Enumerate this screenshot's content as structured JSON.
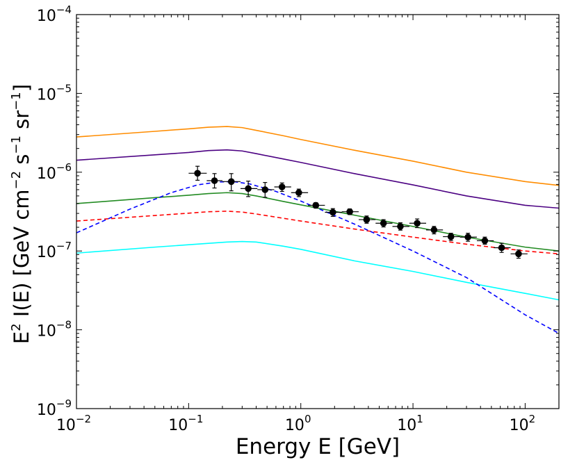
{
  "chart_data": {
    "type": "scatter",
    "title": "",
    "xlabel": "Energy E [GeV]",
    "ylabel": {
      "E": "E",
      "two": "2",
      "text": " I(E) [GeV cm",
      "m2": "−2",
      "s": " s",
      "m1a": "−1",
      "sr": " sr",
      "m1b": "−1",
      "close": "]"
    },
    "x_scale": "log",
    "y_scale": "log",
    "xlim": [
      0.01,
      200
    ],
    "ylim": [
      1e-09,
      0.0001
    ],
    "x_ticks": [
      {
        "value": 0.01,
        "base": "10",
        "exp": "−2"
      },
      {
        "value": 0.1,
        "base": "10",
        "exp": "−1"
      },
      {
        "value": 1,
        "base": "10",
        "exp": "0"
      },
      {
        "value": 10,
        "base": "10",
        "exp": "1"
      },
      {
        "value": 100,
        "base": "10",
        "exp": "2"
      }
    ],
    "y_ticks": [
      {
        "value": 1e-09,
        "base": "10",
        "exp": "−9"
      },
      {
        "value": 1e-08,
        "base": "10",
        "exp": "−8"
      },
      {
        "value": 1e-07,
        "base": "10",
        "exp": "−7"
      },
      {
        "value": 1e-06,
        "base": "10",
        "exp": "−6"
      },
      {
        "value": 1e-05,
        "base": "10",
        "exp": "−5"
      },
      {
        "value": 0.0001,
        "base": "10",
        "exp": "−4"
      }
    ],
    "series": [
      {
        "style": "solid",
        "color": "#ff8c00",
        "x": [
          0.01,
          0.05,
          0.1,
          0.15,
          0.22,
          0.3,
          0.4,
          0.7,
          1,
          3,
          10,
          30,
          100,
          200
        ],
        "y": [
          2.8e-06,
          3.3e-06,
          3.55e-06,
          3.72e-06,
          3.8e-06,
          3.68e-06,
          3.4e-06,
          2.9e-06,
          2.6e-06,
          1.9e-06,
          1.38e-06,
          1e-06,
          7.6e-07,
          6.8e-07
        ]
      },
      {
        "style": "solid",
        "color": "#4b0082",
        "x": [
          0.01,
          0.05,
          0.1,
          0.15,
          0.22,
          0.3,
          0.4,
          0.7,
          1,
          3,
          10,
          30,
          100,
          200
        ],
        "y": [
          1.42e-06,
          1.66e-06,
          1.78e-06,
          1.88e-06,
          1.92e-06,
          1.86e-06,
          1.72e-06,
          1.47e-06,
          1.33e-06,
          9.6e-07,
          6.9e-07,
          5e-07,
          3.8e-07,
          3.5e-07
        ]
      },
      {
        "style": "solid",
        "color": "#228b22",
        "x": [
          0.01,
          0.05,
          0.1,
          0.15,
          0.22,
          0.3,
          0.4,
          0.7,
          1,
          3,
          10,
          30,
          100,
          200
        ],
        "y": [
          4e-07,
          4.75e-07,
          5.1e-07,
          5.35e-07,
          5.5e-07,
          5.35e-07,
          5e-07,
          4.25e-07,
          3.85e-07,
          2.85e-07,
          2.05e-07,
          1.5e-07,
          1.12e-07,
          1e-07
        ]
      },
      {
        "style": "dashed",
        "color": "#ff0000",
        "x": [
          0.01,
          0.05,
          0.1,
          0.15,
          0.22,
          0.3,
          0.4,
          0.7,
          1,
          3,
          10,
          30,
          100,
          200
        ],
        "y": [
          2.4e-07,
          2.82e-07,
          3.02e-07,
          3.15e-07,
          3.2e-07,
          3.12e-07,
          2.95e-07,
          2.6e-07,
          2.4e-07,
          1.9e-07,
          1.5e-07,
          1.22e-07,
          1e-07,
          9.2e-08
        ]
      },
      {
        "style": "solid",
        "color": "#00ffff",
        "x": [
          0.01,
          0.05,
          0.1,
          0.15,
          0.22,
          0.3,
          0.4,
          0.7,
          1,
          3,
          10,
          30,
          100,
          200
        ],
        "y": [
          9.4e-08,
          1.12e-07,
          1.2e-07,
          1.25e-07,
          1.3e-07,
          1.32e-07,
          1.3e-07,
          1.15e-07,
          1.05e-07,
          7.5e-08,
          5.5e-08,
          4e-08,
          2.9e-08,
          2.4e-08
        ]
      },
      {
        "style": "dashed",
        "color": "#0000ff",
        "x": [
          0.01,
          0.03,
          0.07,
          0.12,
          0.18,
          0.25,
          0.35,
          0.6,
          1,
          3,
          10,
          30,
          100,
          200
        ],
        "y": [
          1.7e-07,
          3.4e-07,
          5.5e-07,
          6.9e-07,
          7.5e-07,
          7.6e-07,
          7.1e-07,
          5.7e-07,
          4.3e-07,
          2.2e-07,
          1e-07,
          4.6e-08,
          1.55e-08,
          9e-09
        ]
      },
      {
        "style": "points",
        "color": "#000000",
        "x": [
          0.12,
          0.17,
          0.24,
          0.34,
          0.48,
          0.68,
          0.96,
          1.36,
          1.93,
          2.73,
          3.86,
          5.46,
          7.72,
          10.9,
          15.4,
          21.8,
          30.9,
          43.7,
          61.7,
          87.3
        ],
        "y": [
          9.7e-07,
          7.8e-07,
          7.6e-07,
          6.2e-07,
          6e-07,
          6.5e-07,
          5.5e-07,
          3.8e-07,
          3.1e-07,
          3.15e-07,
          2.5e-07,
          2.25e-07,
          2.05e-07,
          2.25e-07,
          1.85e-07,
          1.52e-07,
          1.5e-07,
          1.35e-07,
          1.1e-07,
          9.2e-08
        ],
        "y_lower": [
          7.9e-07,
          6.3e-07,
          5.8e-07,
          4.9e-07,
          4.8e-07,
          5.7e-07,
          4.9e-07,
          3.5e-07,
          2.75e-07,
          2.9e-07,
          2.25e-07,
          2.02e-07,
          1.84e-07,
          1.98e-07,
          1.65e-07,
          1.36e-07,
          1.33e-07,
          1.22e-07,
          9.6e-08,
          8.1e-08
        ],
        "y_upper": [
          1.19e-06,
          9.6e-07,
          9.6e-07,
          7.7e-07,
          7.4e-07,
          7.3e-07,
          6.1e-07,
          4.1e-07,
          3.45e-07,
          3.42e-07,
          2.78e-07,
          2.5e-07,
          2.28e-07,
          2.55e-07,
          2.05e-07,
          1.68e-07,
          1.68e-07,
          1.5e-07,
          1.25e-07,
          1.03e-07
        ],
        "x_lower": [
          0.1,
          0.145,
          0.2,
          0.29,
          0.41,
          0.58,
          0.82,
          1.16,
          1.64,
          2.32,
          3.28,
          4.64,
          6.56,
          9.28,
          13.1,
          18.5,
          26.2,
          37.1,
          52.5,
          74.2
        ],
        "x_upper": [
          0.145,
          0.2,
          0.29,
          0.41,
          0.58,
          0.82,
          1.16,
          1.64,
          2.32,
          3.28,
          4.64,
          6.56,
          9.28,
          13.1,
          18.5,
          26.2,
          37.1,
          52.5,
          74.2,
          105
        ]
      }
    ]
  }
}
